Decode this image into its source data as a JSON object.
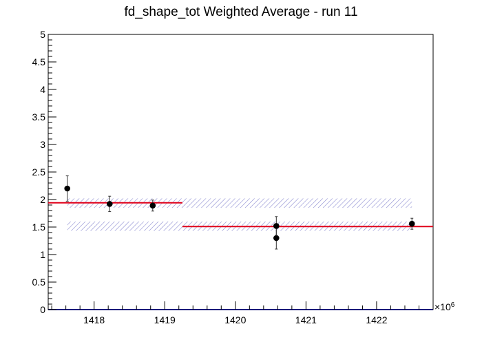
{
  "chart_data": {
    "type": "scatter",
    "title": "fd_shape_tot Weighted Average - run 11",
    "xlabel": "",
    "ylabel": "",
    "x_exponent_label": "×10",
    "x_exponent_power": "6",
    "xlim": [
      1417.35,
      1422.8
    ],
    "ylim": [
      0,
      5
    ],
    "x_ticks": [
      1418,
      1419,
      1420,
      1421,
      1422
    ],
    "x_tick_labels": [
      "1418",
      "1419",
      "1420",
      "1421",
      "1422"
    ],
    "y_ticks": [
      0,
      0.5,
      1,
      1.5,
      2,
      2.5,
      3,
      3.5,
      4,
      4.5,
      5
    ],
    "y_tick_labels": [
      "0",
      "0.5",
      "1",
      "1.5",
      "2",
      "2.5",
      "3",
      "3.5",
      "4",
      "4.5",
      "5"
    ],
    "grid": false,
    "series": [
      {
        "marker": "circle",
        "color": "#000000",
        "points": [
          {
            "x": 1417.62,
            "y": 2.2,
            "err": 0.23
          },
          {
            "x": 1418.22,
            "y": 1.92,
            "err": 0.14
          },
          {
            "x": 1418.83,
            "y": 1.89,
            "err": 0.1
          },
          {
            "x": 1420.58,
            "y": 1.3,
            "err": 0.2
          },
          {
            "x": 1420.58,
            "y": 1.52,
            "err": 0.17
          },
          {
            "x": 1422.5,
            "y": 1.56,
            "err": 0.1
          }
        ]
      }
    ],
    "averages": [
      {
        "x_start": 1417.35,
        "x_end": 1419.25,
        "y": 1.94,
        "color": "#e0001a"
      },
      {
        "x_start": 1419.25,
        "x_end": 1422.8,
        "y": 1.51,
        "color": "#e0001a"
      }
    ],
    "bands": [
      {
        "x_start": 1417.62,
        "x_end": 1422.5,
        "y_low": 1.85,
        "y_high": 2.02,
        "color": "#8b8bd1"
      },
      {
        "x_start": 1417.62,
        "x_end": 1422.5,
        "y_low": 1.43,
        "y_high": 1.6,
        "color": "#8b8bd1"
      }
    ],
    "baseline": {
      "y": 0,
      "color": "#1a1a7a"
    }
  }
}
